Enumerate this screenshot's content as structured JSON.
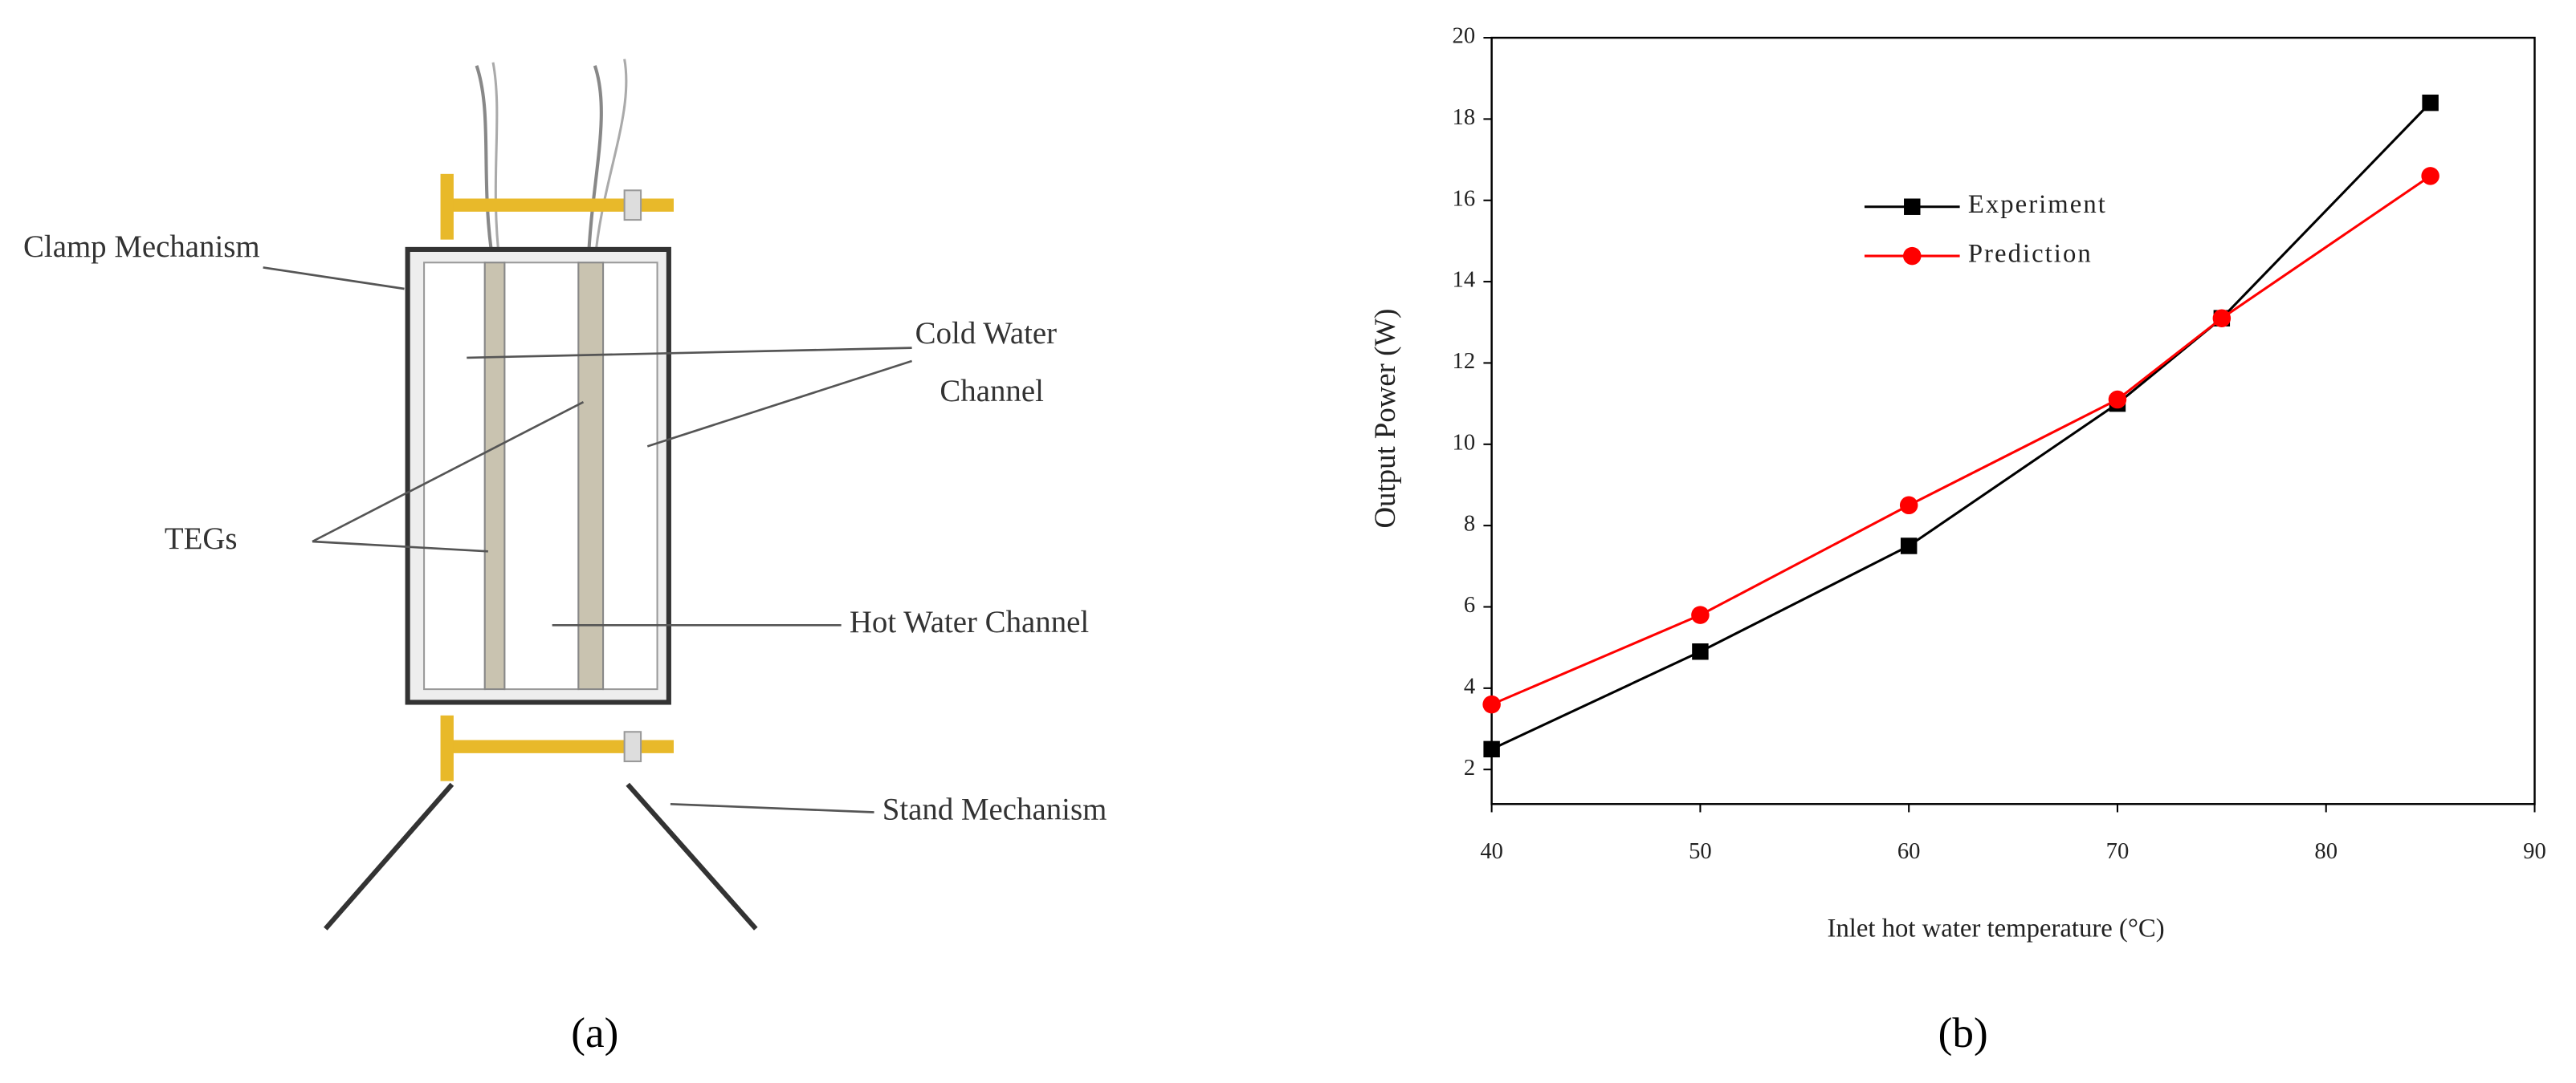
{
  "diagram": {
    "labels": [
      "Clamp Mechanism",
      "Cold Water",
      "Channel",
      "TEGs",
      "Hot Water Channel",
      "Stand Mechanism"
    ]
  },
  "caption_a": "(a)",
  "caption_b": "(b)",
  "chart_data": {
    "type": "line",
    "x_label": "Inlet hot water temperature (°C)",
    "y_label": "Output Power (W)",
    "x": [
      40,
      50,
      60,
      70,
      75,
      85
    ],
    "series": [
      {
        "name": "Experiment",
        "color": "#000000",
        "marker": "square",
        "values": [
          2.5,
          4.9,
          7.5,
          11.0,
          13.1,
          18.4
        ]
      },
      {
        "name": "Prediction",
        "color": "#ff0000",
        "marker": "circle",
        "values": [
          3.6,
          5.8,
          8.5,
          11.1,
          13.1,
          16.6
        ]
      }
    ],
    "xlim": [
      40,
      90
    ],
    "xticks": [
      40,
      50,
      60,
      70,
      80,
      90
    ],
    "ylim": [
      1.15,
      20
    ],
    "yticks": [
      2,
      4,
      6,
      8,
      10,
      12,
      14,
      16,
      18,
      20
    ]
  }
}
